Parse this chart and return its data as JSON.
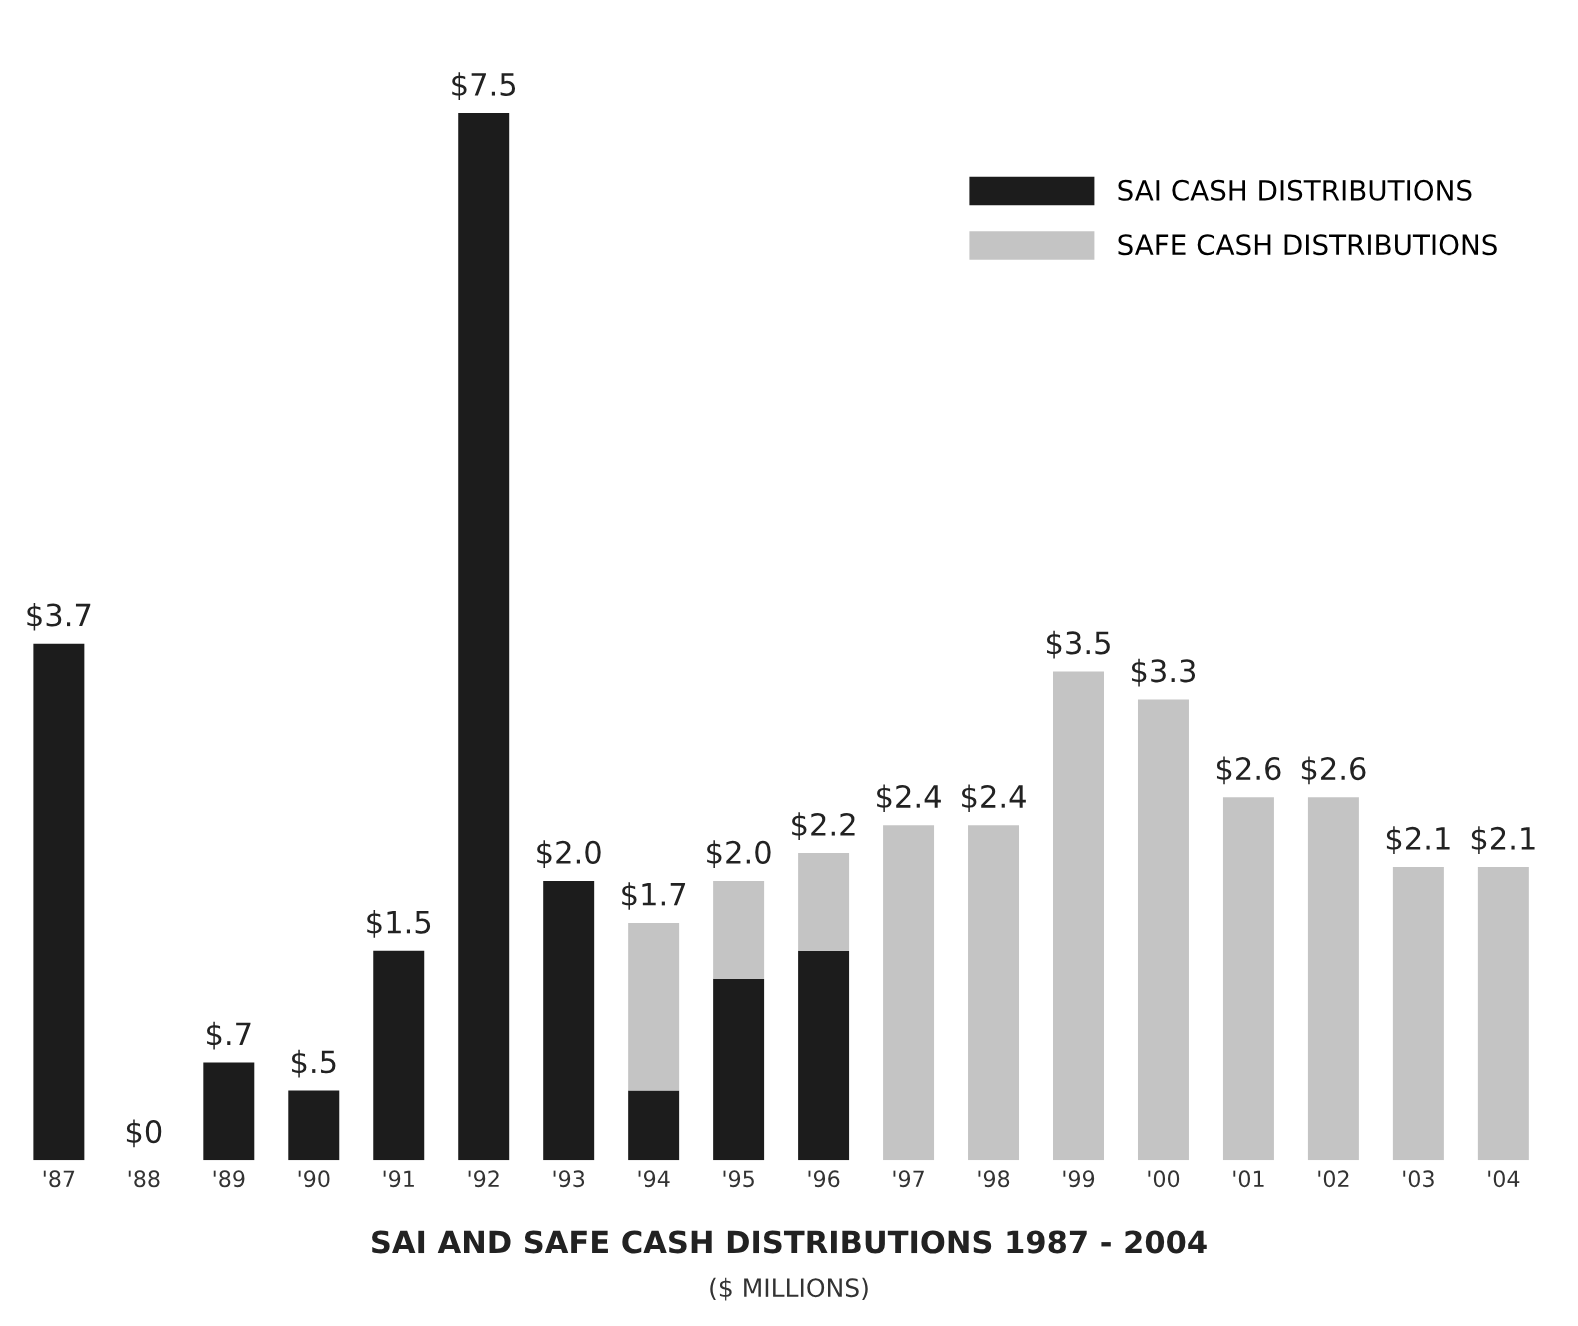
{
  "chart_data": {
    "type": "bar",
    "stacked": true,
    "title": "SAI AND SAFE CASH DISTRIBUTIONS 1987 - 2004",
    "subtitle": "($ MILLIONS)",
    "categories": [
      "'87",
      "'88",
      "'89",
      "'90",
      "'91",
      "'92",
      "'93",
      "'94",
      "'95",
      "'96",
      "'97",
      "'98",
      "'99",
      "'00",
      "'01",
      "'02",
      "'03",
      "'04"
    ],
    "series": [
      {
        "name": "SAI CASH DISTRIBUTIONS",
        "color": "#1c1c1c",
        "values": [
          3.7,
          0,
          0.7,
          0.5,
          1.5,
          7.5,
          2.0,
          0.5,
          1.3,
          1.5,
          null,
          null,
          null,
          null,
          null,
          null,
          null,
          null
        ],
        "value_labels": [
          "$3.7",
          "$0",
          "$.7",
          "$.5",
          "$1.5",
          "$7.5",
          "$2.0",
          null,
          null,
          null,
          null,
          null,
          null,
          null,
          null,
          null,
          null,
          null
        ]
      },
      {
        "name": "SAFE CASH DISTRIBUTIONS",
        "color": "#c4c4c4",
        "values": [
          null,
          null,
          null,
          null,
          null,
          null,
          null,
          1.2,
          0.7,
          0.7,
          2.4,
          2.4,
          3.5,
          3.3,
          2.6,
          2.6,
          2.1,
          2.1
        ],
        "value_labels": [
          null,
          null,
          null,
          null,
          null,
          null,
          null,
          null,
          null,
          null,
          "$2.4",
          "$2.4",
          "$3.5",
          "$3.3",
          "$2.6",
          "$2.6",
          "$2.1",
          "$2.1"
        ]
      }
    ],
    "totals": [
      null,
      null,
      null,
      null,
      null,
      null,
      null,
      "$1.7",
      "$2.0",
      "$2.2",
      null,
      null,
      null,
      null,
      null,
      null,
      null,
      null
    ],
    "legend": "top right"
  }
}
